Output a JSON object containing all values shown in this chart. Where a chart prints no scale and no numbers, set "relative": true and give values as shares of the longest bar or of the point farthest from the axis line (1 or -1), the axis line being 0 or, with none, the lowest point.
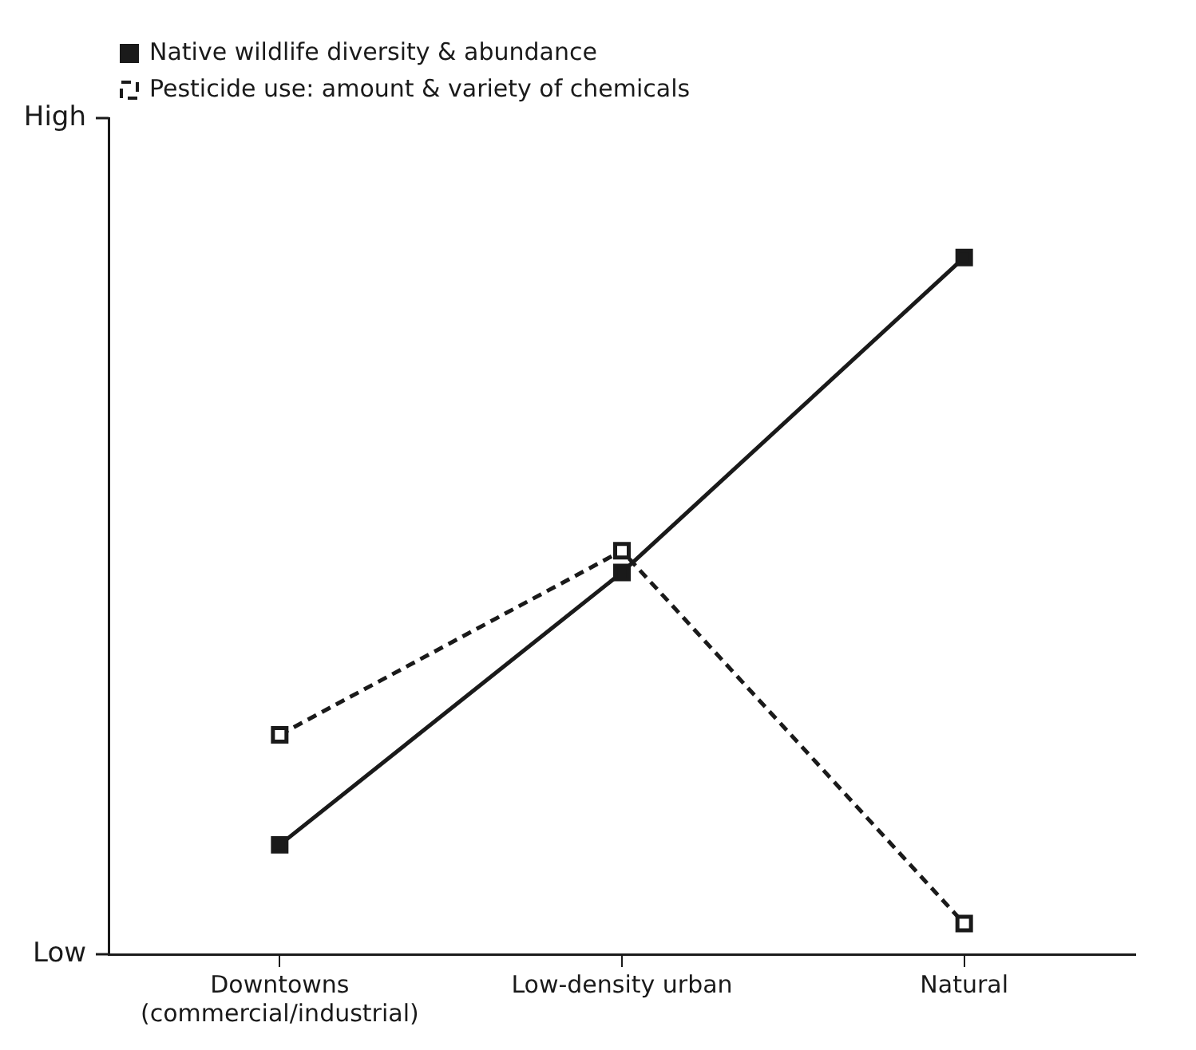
{
  "chart_data": {
    "type": "line",
    "relative": true,
    "categories": [
      "Downtowns\n(commercial/industrial)",
      "Low-density urban",
      "Natural"
    ],
    "series": [
      {
        "name": "Native wildlife diversity & abundance",
        "color": "#1a1a1a",
        "values": [
          0.157,
          0.548,
          1
        ],
        "line_style": "solid",
        "marker": "square"
      },
      {
        "name": "Pesticide use: amount & variety of chemicals",
        "color": "#1a1a1a",
        "values": [
          0.315,
          0.579,
          0.044
        ],
        "line_style": "dashed",
        "marker": "square"
      }
    ],
    "annotations": [
      "High",
      "Low"
    ],
    "legend": "top left",
    "grid": false
  }
}
